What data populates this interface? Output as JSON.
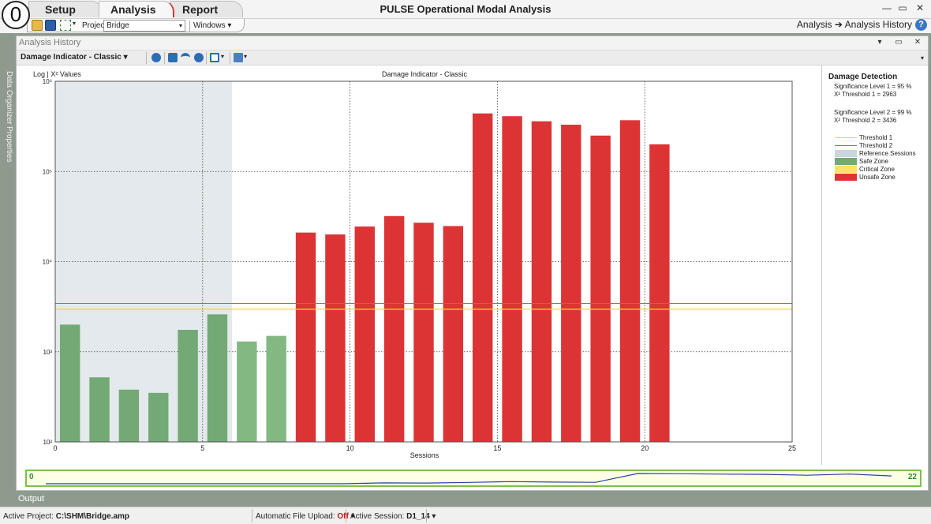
{
  "app": {
    "orb_glyph": "0",
    "title": "PULSE Operational Modal Analysis",
    "tabs": [
      "Setup",
      "Analysis",
      "Report"
    ],
    "window_controls": [
      "—",
      "▭",
      "✕"
    ]
  },
  "toolbar": {
    "project_label": "Project",
    "project_value": "Bridge",
    "windows_label": "Windows"
  },
  "breadcrumb": {
    "from": "Analysis",
    "arrow": "➔",
    "to": "Analysis History"
  },
  "help_glyph": "?",
  "side_tabs": [
    "Data Organizer",
    "Properties"
  ],
  "document": {
    "title": "Analysis History",
    "controls": [
      "▾",
      "▭",
      "✕"
    ],
    "view_select": "Damage Indicator - Classic",
    "dropdown_glyph": "▾"
  },
  "chart_data": {
    "type": "bar",
    "title": "Damage Indicator - Classic",
    "ylabel": "Log | X² Values",
    "xlabel": "Sessions",
    "x_axis": {
      "min": 0,
      "max": 25,
      "ticks": [
        0,
        5,
        10,
        15,
        20,
        25
      ]
    },
    "y_axis": {
      "scale": "log",
      "min": 100,
      "max": 1000000,
      "tick_labels": [
        "10⁶",
        "10⁵",
        "10⁴",
        "10³",
        "10²"
      ],
      "tick_values": [
        1000000,
        100000,
        10000,
        1000,
        100
      ]
    },
    "grid": true,
    "reference_sessions": {
      "from": 0,
      "to": 6
    },
    "thresholds": {
      "threshold_1": 2963,
      "threshold_2": 3436
    },
    "sessions": [
      1,
      2,
      3,
      4,
      5,
      6,
      7,
      8,
      9,
      10,
      11,
      12,
      13,
      14,
      15,
      16,
      17,
      18,
      19,
      20,
      21
    ],
    "values": [
      2000,
      520,
      380,
      350,
      1750,
      2600,
      1300,
      1500,
      21000,
      20000,
      24500,
      32000,
      27000,
      24800,
      440000,
      410000,
      360000,
      330000,
      250000,
      370000,
      200000
    ],
    "zones": [
      "safe",
      "safe",
      "safe",
      "safe",
      "safe",
      "safe",
      "safe",
      "safe",
      "unsafe",
      "unsafe",
      "unsafe",
      "unsafe",
      "unsafe",
      "unsafe",
      "unsafe",
      "unsafe",
      "unsafe",
      "unsafe",
      "unsafe",
      "unsafe",
      "unsafe"
    ],
    "colors": {
      "safe_reference": "#72a975",
      "safe": "#82b982",
      "unsafe": "#dc3434",
      "reference_bg": "#e3e9ec",
      "threshold_1": "#f3d43c",
      "threshold_2": "#e45050"
    }
  },
  "legend_panel": {
    "title": "Damage Detection",
    "lines": [
      "Significance Level 1 = 95 %",
      "X² Threshold 1 = 2963",
      "Significance Level 2 = 99 %",
      "X² Threshold 2 = 3436"
    ],
    "entries": [
      {
        "label": "Threshold 1",
        "color": "#f3d43c"
      },
      {
        "label": "Threshold 2",
        "color": "#e45050"
      },
      {
        "label": "Reference Sessions",
        "color": "#cbd6db"
      },
      {
        "label": "Safe Zone",
        "color": "#72a975"
      },
      {
        "label": "Critical Zone",
        "color": "#f7e36a"
      },
      {
        "label": "Unsafe Zone",
        "color": "#dc3434"
      }
    ]
  },
  "overview": {
    "start": "0",
    "end": "22"
  },
  "output_tab": "Output",
  "status": {
    "project_label": "Active Project:",
    "project_value": "C:\\SHM\\Bridge.amp",
    "upload_label": "Automatic File Upload:",
    "upload_value": "Off",
    "session_label": "Active Session:",
    "session_value": "D1_14"
  }
}
